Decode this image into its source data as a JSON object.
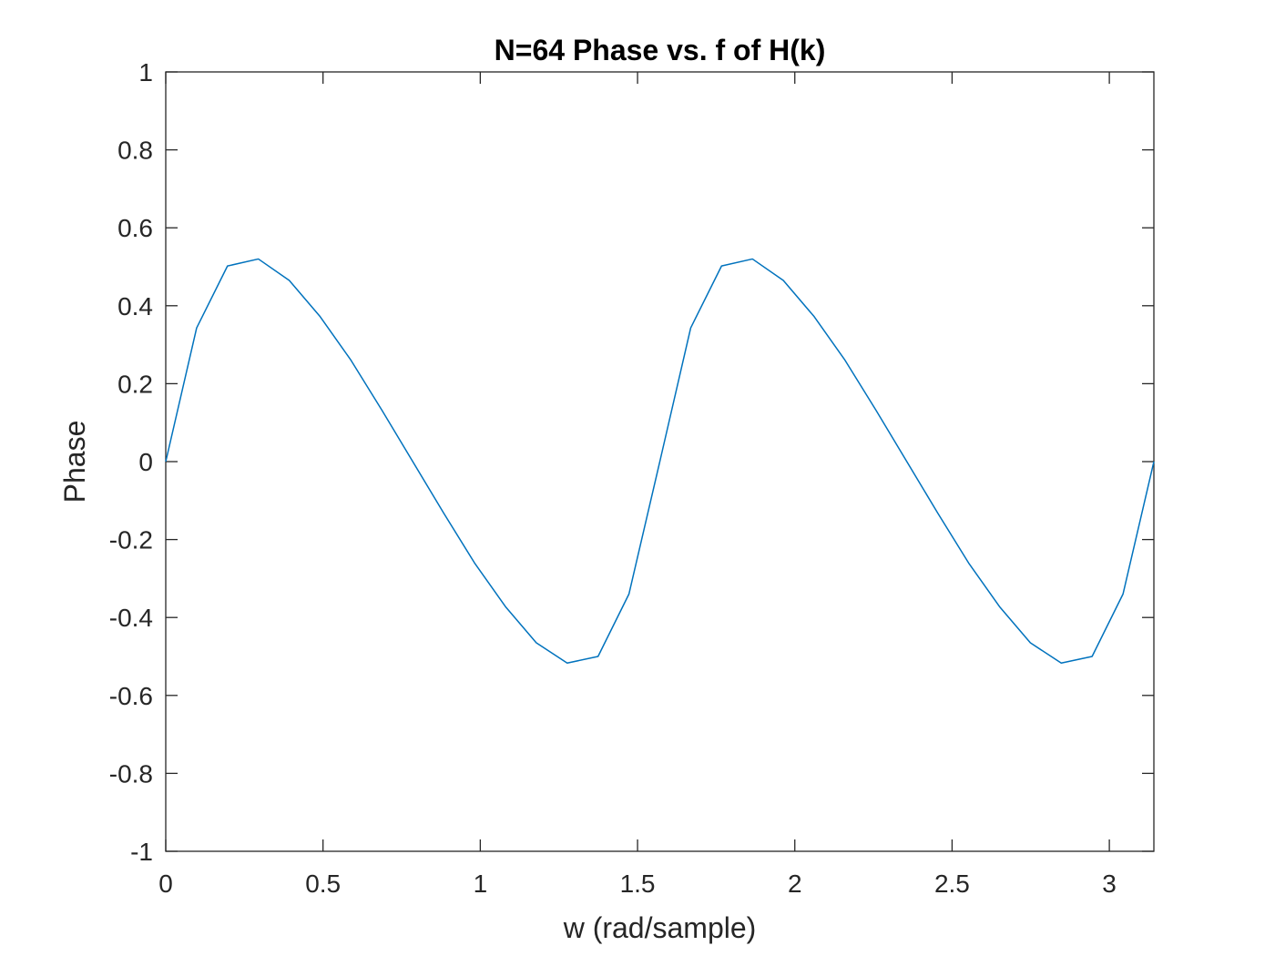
{
  "chart_data": {
    "type": "line",
    "title": "N=64 Phase vs. f of H(k)",
    "xlabel": "w (rad/sample)",
    "ylabel": "Phase",
    "xlim": [
      0,
      3.1416
    ],
    "ylim": [
      -1,
      1
    ],
    "grid": false,
    "xticks": [
      0,
      0.5,
      1,
      1.5,
      2,
      2.5,
      3
    ],
    "xtick_labels": [
      "0",
      "0.5",
      "1",
      "1.5",
      "2",
      "2.5",
      "3"
    ],
    "yticks": [
      -1,
      -0.8,
      -0.6,
      -0.4,
      -0.2,
      0,
      0.2,
      0.4,
      0.6,
      0.8,
      1
    ],
    "ytick_labels": [
      "-1",
      "-0.8",
      "-0.6",
      "-0.4",
      "-0.2",
      "0",
      "0.2",
      "0.4",
      "0.6",
      "0.8",
      "1"
    ],
    "series": [
      {
        "color": "#0072BD",
        "x": [
          0,
          0.0982,
          0.1963,
          0.2945,
          0.3927,
          0.4909,
          0.589,
          0.6872,
          0.7854,
          0.8836,
          0.9817,
          1.0799,
          1.1781,
          1.2763,
          1.3744,
          1.4726,
          1.5708,
          1.669,
          1.7671,
          1.8653,
          1.9635,
          2.0617,
          2.1598,
          2.258,
          2.3562,
          2.4544,
          2.5525,
          2.6507,
          2.7489,
          2.8471,
          2.9452,
          3.0434,
          3.1416
        ],
        "y": [
          0,
          0.343,
          0.502,
          0.52,
          0.465,
          0.372,
          0.26,
          0.132,
          0.0,
          -0.132,
          -0.26,
          -0.372,
          -0.465,
          -0.517,
          -0.5,
          -0.34,
          0.0,
          0.343,
          0.502,
          0.52,
          0.465,
          0.372,
          0.26,
          0.132,
          0.0,
          -0.132,
          -0.26,
          -0.372,
          -0.465,
          -0.517,
          -0.5,
          -0.34,
          0.0
        ]
      }
    ]
  }
}
